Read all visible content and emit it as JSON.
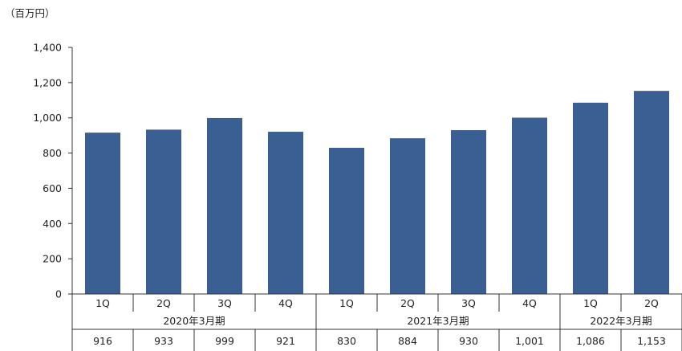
{
  "chart_data": {
    "type": "bar",
    "unit_label": "（百万円）",
    "categories": [
      "1Q",
      "2Q",
      "3Q",
      "4Q",
      "1Q",
      "2Q",
      "3Q",
      "4Q",
      "1Q",
      "2Q"
    ],
    "groups": [
      {
        "label": "2020年3月期",
        "count": 4
      },
      {
        "label": "2021年3月期",
        "count": 4
      },
      {
        "label": "2022年3月期",
        "count": 2
      }
    ],
    "values": [
      916,
      933,
      999,
      921,
      830,
      884,
      930,
      1001,
      1086,
      1153
    ],
    "value_labels": [
      "916",
      "933",
      "999",
      "921",
      "830",
      "884",
      "930",
      "1,001",
      "1,086",
      "1,153"
    ],
    "ylim": [
      0,
      1400
    ],
    "yticks": [
      0,
      200,
      400,
      600,
      800,
      1000,
      1200,
      1400
    ],
    "ytick_labels": [
      "0",
      "200",
      "400",
      "600",
      "800",
      "1,000",
      "1,200",
      "1,400"
    ],
    "bar_color": "#3a5f93",
    "grid": false,
    "title": "",
    "xlabel": "",
    "ylabel": ""
  }
}
